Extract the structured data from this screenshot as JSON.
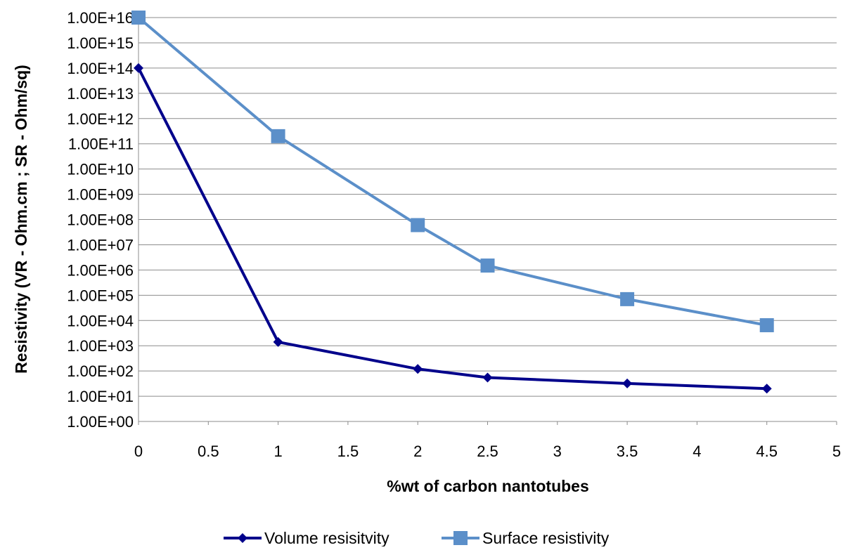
{
  "chart_data": {
    "type": "line",
    "title": "",
    "xlabel": "%wt of carbon nantotubes",
    "ylabel": "Resistivity (VR - Ohm.cm ; SR - Ohm/sq)",
    "y_scale": "log",
    "xlim": [
      0,
      5
    ],
    "ylim": [
      1,
      10000000000000000
    ],
    "x_ticks": [
      "0",
      "0.5",
      "1",
      "1.5",
      "2",
      "2.5",
      "3",
      "3.5",
      "4",
      "4.5",
      "5"
    ],
    "y_ticks": [
      "1.00E+00",
      "1.00E+01",
      "1.00E+02",
      "1.00E+03",
      "1.00E+04",
      "1.00E+05",
      "1.00E+06",
      "1.00E+07",
      "1.00E+08",
      "1.00E+09",
      "1.00E+10",
      "1.00E+11",
      "1.00E+12",
      "1.00E+13",
      "1.00E+14",
      "1.00E+15",
      "1.00E+16"
    ],
    "grid": "horizontal",
    "legend_position": "bottom",
    "series": [
      {
        "name": "Volume resisitvity",
        "color": "#00008B",
        "marker": "diamond",
        "x": [
          0,
          1,
          2,
          2.5,
          3.5,
          4.5
        ],
        "y": [
          100000000000000,
          1400,
          120,
          55,
          32,
          20
        ]
      },
      {
        "name": "Surface resistivity",
        "color": "#5B8FC9",
        "marker": "square",
        "x": [
          0,
          1,
          2,
          2.5,
          3.5,
          4.5
        ],
        "y": [
          10000000000000000,
          200000000000,
          60000000,
          1500000,
          70000,
          6500
        ]
      }
    ]
  }
}
